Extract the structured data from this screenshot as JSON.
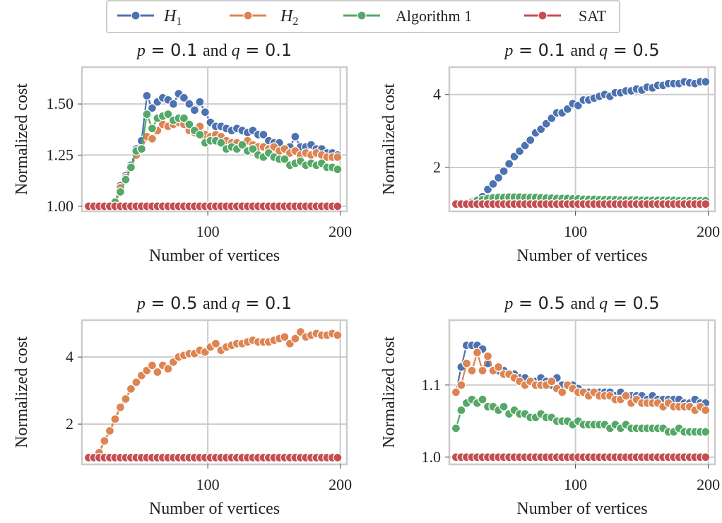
{
  "legend": {
    "placement": "top-center",
    "items": [
      {
        "label": "H",
        "sub": "1",
        "color": "#4c72b0"
      },
      {
        "label": "H",
        "sub": "2",
        "color": "#dd8452"
      },
      {
        "label": "Algorithm 1",
        "sub": "",
        "color": "#55a868"
      },
      {
        "label": "SAT",
        "sub": "",
        "color": "#c44e52"
      }
    ]
  },
  "chart_data": [
    {
      "type": "line",
      "title": {
        "p_sym": "p",
        "p_val": "= 0.1",
        "conj": "and",
        "q_sym": "q",
        "q_val": "= 0.1"
      },
      "xlabel": "Number of vertices",
      "ylabel": "Normalized cost",
      "xlim": [
        5,
        205
      ],
      "ylim": [
        0.975,
        1.68
      ],
      "xticks": [
        100,
        200
      ],
      "yticks": [
        1.0,
        1.25,
        1.5
      ],
      "yticklabels": [
        "1.00",
        "1.25",
        "1.50"
      ],
      "grid": true,
      "x_start": 10,
      "x_step": 4,
      "series": [
        {
          "name": "H1",
          "values": [
            1.0,
            1.0,
            1.0,
            1.0,
            1.0,
            1.02,
            1.1,
            1.15,
            1.2,
            1.28,
            1.32,
            1.54,
            1.48,
            1.51,
            1.53,
            1.52,
            1.5,
            1.55,
            1.53,
            1.5,
            1.47,
            1.51,
            1.46,
            1.41,
            1.39,
            1.39,
            1.38,
            1.37,
            1.38,
            1.37,
            1.36,
            1.37,
            1.35,
            1.35,
            1.32,
            1.31,
            1.31,
            1.28,
            1.29,
            1.34,
            1.29,
            1.29,
            1.3,
            1.28,
            1.28,
            1.26,
            1.26,
            1.25
          ]
        },
        {
          "name": "H2",
          "values": [
            1.0,
            1.0,
            1.0,
            1.0,
            1.0,
            1.02,
            1.09,
            1.14,
            1.19,
            1.25,
            1.28,
            1.34,
            1.33,
            1.37,
            1.4,
            1.39,
            1.4,
            1.41,
            1.4,
            1.37,
            1.36,
            1.39,
            1.35,
            1.34,
            1.35,
            1.34,
            1.32,
            1.31,
            1.31,
            1.3,
            1.32,
            1.3,
            1.29,
            1.29,
            1.28,
            1.29,
            1.27,
            1.28,
            1.26,
            1.27,
            1.25,
            1.26,
            1.25,
            1.26,
            1.25,
            1.24,
            1.24,
            1.24
          ]
        },
        {
          "name": "Algorithm 1",
          "values": [
            1.0,
            1.0,
            1.0,
            1.0,
            1.0,
            1.02,
            1.07,
            1.13,
            1.19,
            1.27,
            1.28,
            1.45,
            1.38,
            1.43,
            1.44,
            1.45,
            1.42,
            1.43,
            1.43,
            1.4,
            1.37,
            1.35,
            1.31,
            1.32,
            1.32,
            1.31,
            1.28,
            1.29,
            1.28,
            1.3,
            1.27,
            1.28,
            1.25,
            1.24,
            1.26,
            1.24,
            1.23,
            1.23,
            1.2,
            1.21,
            1.22,
            1.2,
            1.21,
            1.2,
            1.21,
            1.19,
            1.19,
            1.18
          ]
        },
        {
          "name": "SAT",
          "values": [
            1.0,
            1.0,
            1.0,
            1.0,
            1.0,
            1.0,
            1.0,
            1.0,
            1.0,
            1.0,
            1.0,
            1.0,
            1.0,
            1.0,
            1.0,
            1.0,
            1.0,
            1.0,
            1.0,
            1.0,
            1.0,
            1.0,
            1.0,
            1.0,
            1.0,
            1.0,
            1.0,
            1.0,
            1.0,
            1.0,
            1.0,
            1.0,
            1.0,
            1.0,
            1.0,
            1.0,
            1.0,
            1.0,
            1.0,
            1.0,
            1.0,
            1.0,
            1.0,
            1.0,
            1.0,
            1.0,
            1.0,
            1.0
          ]
        }
      ]
    },
    {
      "type": "line",
      "title": {
        "p_sym": "p",
        "p_val": "= 0.1",
        "conj": "and",
        "q_sym": "q",
        "q_val": "= 0.5"
      },
      "xlabel": "Number of vertices",
      "ylabel": "Normalized cost",
      "xlim": [
        5,
        205
      ],
      "ylim": [
        0.8,
        4.75
      ],
      "xticks": [
        100,
        200
      ],
      "yticks": [
        2,
        4
      ],
      "yticklabels": [
        "2",
        "4"
      ],
      "grid": true,
      "x_start": 10,
      "x_step": 4,
      "series": [
        {
          "name": "H1",
          "values": [
            1.0,
            1.0,
            1.0,
            1.05,
            1.12,
            1.2,
            1.4,
            1.55,
            1.72,
            1.9,
            2.1,
            2.3,
            2.45,
            2.6,
            2.75,
            2.95,
            3.05,
            3.2,
            3.35,
            3.5,
            3.5,
            3.6,
            3.75,
            3.7,
            3.85,
            3.85,
            3.9,
            3.95,
            4.0,
            3.95,
            4.05,
            4.05,
            4.1,
            4.1,
            4.15,
            4.12,
            4.2,
            4.18,
            4.25,
            4.25,
            4.3,
            4.3,
            4.3,
            4.35,
            4.32,
            4.3,
            4.35,
            4.35
          ]
        },
        {
          "name": "H2",
          "values": [
            1.0,
            1.0,
            1.0,
            1.0,
            1.0,
            1.0,
            1.0,
            1.0,
            1.0,
            1.0,
            1.0,
            1.0,
            1.0,
            1.0,
            1.0,
            1.0,
            1.0,
            1.0,
            1.0,
            1.0,
            1.0,
            1.0,
            1.0,
            1.0,
            1.0,
            1.0,
            1.0,
            1.0,
            1.0,
            1.0,
            1.0,
            1.0,
            1.0,
            1.0,
            1.0,
            1.0,
            1.0,
            1.0,
            1.0,
            1.0,
            1.0,
            1.0,
            1.0,
            1.0,
            1.0,
            1.0,
            1.0,
            1.0
          ]
        },
        {
          "name": "Algorithm 1",
          "values": [
            1.0,
            1.0,
            1.0,
            1.05,
            1.1,
            1.12,
            1.15,
            1.17,
            1.18,
            1.18,
            1.19,
            1.19,
            1.19,
            1.18,
            1.18,
            1.18,
            1.17,
            1.16,
            1.16,
            1.15,
            1.15,
            1.15,
            1.14,
            1.14,
            1.13,
            1.13,
            1.13,
            1.12,
            1.12,
            1.12,
            1.12,
            1.11,
            1.11,
            1.11,
            1.11,
            1.1,
            1.1,
            1.1,
            1.1,
            1.1,
            1.1,
            1.1,
            1.09,
            1.09,
            1.09,
            1.09,
            1.09,
            1.09
          ]
        },
        {
          "name": "SAT",
          "values": [
            1.0,
            1.0,
            1.0,
            1.0,
            1.0,
            1.0,
            1.0,
            1.0,
            1.0,
            1.0,
            1.0,
            1.0,
            1.0,
            1.0,
            1.0,
            1.0,
            1.0,
            1.0,
            1.0,
            1.0,
            1.0,
            1.0,
            1.0,
            1.0,
            1.0,
            1.0,
            1.0,
            1.0,
            1.0,
            1.0,
            1.0,
            1.0,
            1.0,
            1.0,
            1.0,
            1.0,
            1.0,
            1.0,
            1.0,
            1.0,
            1.0,
            1.0,
            1.0,
            1.0,
            1.0,
            1.0,
            1.0,
            1.0
          ]
        }
      ]
    },
    {
      "type": "line",
      "title": {
        "p_sym": "p",
        "p_val": "= 0.5",
        "conj": "and",
        "q_sym": "q",
        "q_val": "= 0.1"
      },
      "xlabel": "Number of vertices",
      "ylabel": "Normalized cost",
      "xlim": [
        5,
        205
      ],
      "ylim": [
        0.8,
        5.1
      ],
      "xticks": [
        100,
        200
      ],
      "yticks": [
        2,
        4
      ],
      "yticklabels": [
        "2",
        "4"
      ],
      "grid": true,
      "x_start": 10,
      "x_step": 4,
      "series": [
        {
          "name": "H1",
          "values": [
            1.0,
            1.0,
            1.15,
            1.5,
            1.8,
            2.15,
            2.5,
            2.75,
            3.05,
            3.25,
            3.45,
            3.6,
            3.75,
            3.55,
            3.75,
            3.65,
            3.85,
            4.0,
            4.05,
            4.1,
            4.1,
            4.2,
            4.15,
            4.3,
            4.4,
            4.2,
            4.3,
            4.35,
            4.4,
            4.4,
            4.45,
            4.5,
            4.45,
            4.45,
            4.45,
            4.5,
            4.55,
            4.6,
            4.4,
            4.55,
            4.75,
            4.6,
            4.65,
            4.7,
            4.65,
            4.65,
            4.7,
            4.65
          ]
        },
        {
          "name": "H2",
          "values": [
            1.0,
            1.0,
            1.15,
            1.5,
            1.8,
            2.15,
            2.5,
            2.75,
            3.05,
            3.25,
            3.45,
            3.6,
            3.75,
            3.55,
            3.75,
            3.65,
            3.85,
            4.0,
            4.05,
            4.1,
            4.1,
            4.2,
            4.15,
            4.3,
            4.4,
            4.2,
            4.3,
            4.35,
            4.4,
            4.4,
            4.45,
            4.5,
            4.45,
            4.45,
            4.45,
            4.5,
            4.55,
            4.6,
            4.4,
            4.55,
            4.75,
            4.6,
            4.65,
            4.7,
            4.65,
            4.65,
            4.7,
            4.65
          ]
        },
        {
          "name": "Algorithm 1",
          "values": [
            1.0,
            1.0,
            1.0,
            1.0,
            1.0,
            1.0,
            1.0,
            1.0,
            1.0,
            1.0,
            1.0,
            1.0,
            1.0,
            1.0,
            1.0,
            1.0,
            1.0,
            1.0,
            1.0,
            1.0,
            1.0,
            1.0,
            1.0,
            1.0,
            1.0,
            1.0,
            1.0,
            1.0,
            1.0,
            1.0,
            1.0,
            1.0,
            1.0,
            1.0,
            1.0,
            1.0,
            1.0,
            1.0,
            1.0,
            1.0,
            1.0,
            1.0,
            1.0,
            1.0,
            1.0,
            1.0,
            1.0,
            1.0
          ]
        },
        {
          "name": "SAT",
          "values": [
            1.0,
            1.0,
            1.0,
            1.0,
            1.0,
            1.0,
            1.0,
            1.0,
            1.0,
            1.0,
            1.0,
            1.0,
            1.0,
            1.0,
            1.0,
            1.0,
            1.0,
            1.0,
            1.0,
            1.0,
            1.0,
            1.0,
            1.0,
            1.0,
            1.0,
            1.0,
            1.0,
            1.0,
            1.0,
            1.0,
            1.0,
            1.0,
            1.0,
            1.0,
            1.0,
            1.0,
            1.0,
            1.0,
            1.0,
            1.0,
            1.0,
            1.0,
            1.0,
            1.0,
            1.0,
            1.0,
            1.0,
            1.0
          ]
        }
      ]
    },
    {
      "type": "line",
      "title": {
        "p_sym": "p",
        "p_val": "= 0.5",
        "conj": "and",
        "q_sym": "q",
        "q_val": "= 0.5"
      },
      "xlabel": "Number of vertices",
      "ylabel": "Normalized cost",
      "xlim": [
        5,
        205
      ],
      "ylim": [
        0.99,
        1.19
      ],
      "xticks": [
        100,
        200
      ],
      "yticks": [
        1.0,
        1.1
      ],
      "yticklabels": [
        "1.0",
        "1.1"
      ],
      "grid": true,
      "x_start": 10,
      "x_step": 4,
      "series": [
        {
          "name": "H1",
          "values": [
            1.09,
            1.125,
            1.155,
            1.155,
            1.155,
            1.15,
            1.13,
            1.12,
            1.12,
            1.12,
            1.115,
            1.115,
            1.11,
            1.11,
            1.105,
            1.105,
            1.11,
            1.105,
            1.1,
            1.11,
            1.1,
            1.1,
            1.1,
            1.095,
            1.09,
            1.09,
            1.09,
            1.09,
            1.09,
            1.09,
            1.085,
            1.09,
            1.085,
            1.085,
            1.085,
            1.085,
            1.08,
            1.085,
            1.08,
            1.08,
            1.08,
            1.08,
            1.08,
            1.075,
            1.075,
            1.08,
            1.075,
            1.075
          ]
        },
        {
          "name": "H2",
          "values": [
            1.09,
            1.1,
            1.13,
            1.12,
            1.145,
            1.12,
            1.14,
            1.12,
            1.125,
            1.115,
            1.115,
            1.11,
            1.105,
            1.1,
            1.105,
            1.1,
            1.1,
            1.1,
            1.105,
            1.095,
            1.09,
            1.1,
            1.095,
            1.09,
            1.09,
            1.085,
            1.09,
            1.085,
            1.085,
            1.085,
            1.08,
            1.08,
            1.085,
            1.075,
            1.08,
            1.075,
            1.075,
            1.075,
            1.075,
            1.07,
            1.075,
            1.07,
            1.07,
            1.07,
            1.07,
            1.065,
            1.07,
            1.065
          ]
        },
        {
          "name": "Algorithm 1",
          "values": [
            1.04,
            1.065,
            1.075,
            1.08,
            1.075,
            1.08,
            1.07,
            1.07,
            1.065,
            1.07,
            1.06,
            1.065,
            1.06,
            1.06,
            1.055,
            1.055,
            1.06,
            1.055,
            1.055,
            1.05,
            1.05,
            1.05,
            1.045,
            1.05,
            1.045,
            1.045,
            1.045,
            1.045,
            1.045,
            1.04,
            1.045,
            1.04,
            1.045,
            1.04,
            1.04,
            1.04,
            1.04,
            1.04,
            1.04,
            1.04,
            1.035,
            1.035,
            1.04,
            1.035,
            1.035,
            1.035,
            1.035,
            1.035
          ]
        },
        {
          "name": "SAT",
          "values": [
            1.0,
            1.0,
            1.0,
            1.0,
            1.0,
            1.0,
            1.0,
            1.0,
            1.0,
            1.0,
            1.0,
            1.0,
            1.0,
            1.0,
            1.0,
            1.0,
            1.0,
            1.0,
            1.0,
            1.0,
            1.0,
            1.0,
            1.0,
            1.0,
            1.0,
            1.0,
            1.0,
            1.0,
            1.0,
            1.0,
            1.0,
            1.0,
            1.0,
            1.0,
            1.0,
            1.0,
            1.0,
            1.0,
            1.0,
            1.0,
            1.0,
            1.0,
            1.0,
            1.0,
            1.0,
            1.0,
            1.0,
            1.0
          ]
        }
      ]
    }
  ]
}
